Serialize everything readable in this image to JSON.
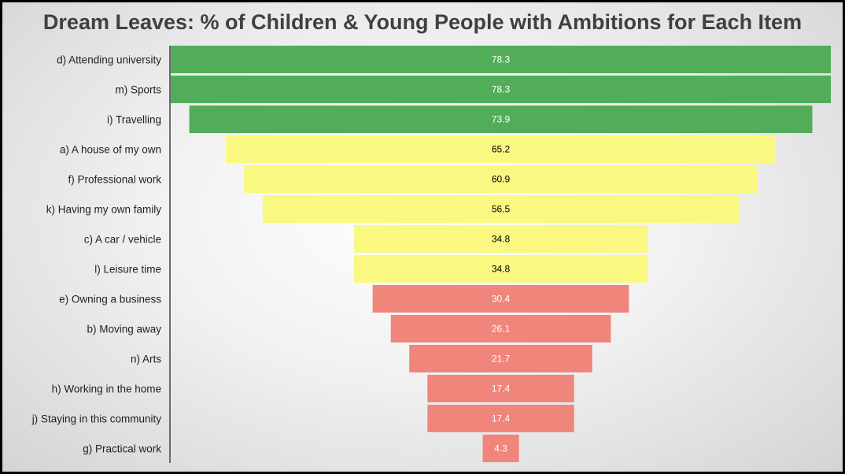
{
  "chart_data": {
    "type": "bar",
    "title": "Dream Leaves: % of Children & Young People with Ambitions for Each Item",
    "xlim": [
      0,
      78.3
    ],
    "categories": [
      {
        "prefix": "d)",
        "label": "Attending university"
      },
      {
        "prefix": "m)",
        "label": "Sports"
      },
      {
        "prefix": "i)",
        "label": "Travelling"
      },
      {
        "prefix": "a)",
        "label": "A house of my own"
      },
      {
        "prefix": "f)",
        "label": "Professional work"
      },
      {
        "prefix": "k)",
        "label": "Having my own family"
      },
      {
        "prefix": "c)",
        "label": "A car / vehicle"
      },
      {
        "prefix": "l)",
        "label": "Leisure time"
      },
      {
        "prefix": "e)",
        "label": "Owning a business"
      },
      {
        "prefix": "b)",
        "label": "Moving away"
      },
      {
        "prefix": "n)",
        "label": "Arts"
      },
      {
        "prefix": "h)",
        "label": "Working in the home"
      },
      {
        "prefix": "j)",
        "label": "Staying in this community"
      },
      {
        "prefix": "g)",
        "label": "Practical work"
      }
    ],
    "values": [
      78.3,
      78.3,
      73.9,
      65.2,
      60.9,
      56.5,
      34.8,
      34.8,
      30.4,
      26.1,
      21.7,
      17.4,
      17.4,
      4.3
    ],
    "colors": {
      "high": "#52ad5b",
      "mid": "#f9f982",
      "low": "#ef857b",
      "value_text_dark": "#000000",
      "value_text_light": "#ffffff"
    }
  }
}
